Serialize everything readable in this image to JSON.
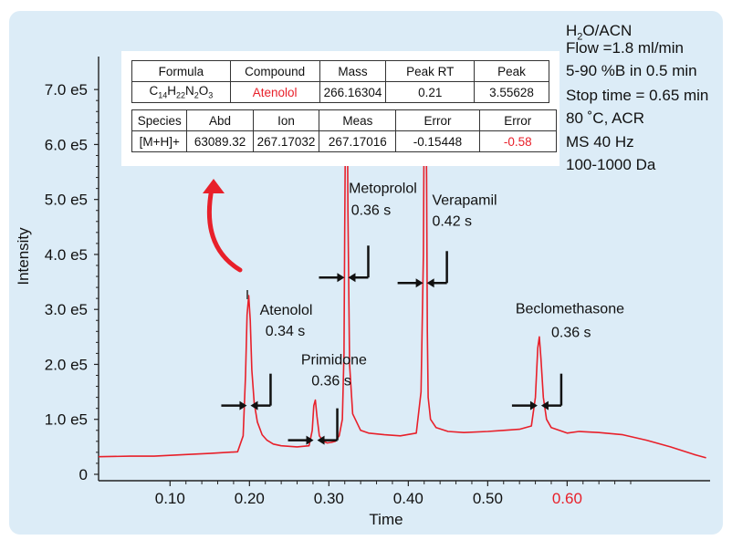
{
  "chart_data": {
    "type": "line",
    "xlabel": "Time",
    "ylabel": "Intensity",
    "xlim": [
      0.01,
      0.78
    ],
    "ylim": [
      -5000,
      760000
    ],
    "x_ticks": [
      0.1,
      0.2,
      0.3,
      0.4,
      0.5,
      0.6
    ],
    "x_tick_labels": [
      "0.10",
      "0.20",
      "0.30",
      "0.40",
      "0.50",
      "0.60"
    ],
    "y_ticks": [
      0,
      100000,
      200000,
      300000,
      400000,
      500000,
      600000,
      700000
    ],
    "y_tick_labels": [
      "0",
      "1.0 e5",
      "2.0 e5",
      "3.0 e5",
      "4.0 e5",
      "5.0 e5",
      "6.0 e5",
      "7.0 e5"
    ],
    "highlight_tick_color": "#e8202a",
    "line_color": "#e8202a",
    "series": [
      {
        "x": [
          0.01,
          0.05,
          0.08,
          0.12,
          0.15,
          0.185,
          0.192,
          0.195,
          0.197,
          0.199,
          0.201,
          0.203,
          0.206,
          0.21,
          0.216,
          0.222,
          0.23,
          0.24,
          0.26,
          0.275,
          0.279,
          0.281,
          0.283,
          0.285,
          0.288,
          0.293,
          0.298,
          0.303,
          0.308,
          0.313,
          0.317,
          0.319,
          0.32,
          0.321,
          0.322,
          0.323,
          0.324,
          0.326,
          0.33,
          0.34,
          0.35,
          0.37,
          0.39,
          0.41,
          0.416,
          0.419,
          0.42,
          0.421,
          0.422,
          0.423,
          0.424,
          0.425,
          0.428,
          0.435,
          0.45,
          0.47,
          0.5,
          0.52,
          0.54,
          0.555,
          0.56,
          0.563,
          0.565,
          0.567,
          0.57,
          0.574,
          0.58,
          0.59,
          0.6,
          0.615,
          0.64,
          0.67,
          0.7,
          0.73,
          0.76,
          0.775
        ],
        "y": [
          32000,
          33000,
          33000,
          36000,
          38000,
          41000,
          70000,
          180000,
          290000,
          325000,
          280000,
          190000,
          130000,
          95000,
          72000,
          62000,
          55000,
          52000,
          50000,
          52000,
          80000,
          125000,
          135000,
          105000,
          70000,
          60000,
          57000,
          58000,
          60000,
          70000,
          100000,
          220000,
          450000,
          660000,
          740000,
          720000,
          480000,
          200000,
          110000,
          80000,
          75000,
          72000,
          70000,
          75000,
          150000,
          400000,
          680000,
          745000,
          720000,
          540000,
          260000,
          140000,
          100000,
          85000,
          78000,
          76000,
          78000,
          80000,
          82000,
          88000,
          140000,
          230000,
          250000,
          210000,
          140000,
          100000,
          85000,
          80000,
          75000,
          78000,
          76000,
          72000,
          62000,
          50000,
          36000,
          30000
        ]
      }
    ],
    "width_markers": [
      {
        "x": 0.199,
        "y": 125000
      },
      {
        "x": 0.283,
        "y": 62000
      },
      {
        "x": 0.322,
        "y": 358000
      },
      {
        "x": 0.421,
        "y": 348000
      },
      {
        "x": 0.565,
        "y": 125000
      }
    ],
    "annotations": [
      {
        "text": "Atenolol",
        "x": 0.213,
        "y": 290000
      },
      {
        "text": "0.34 s",
        "x": 0.22,
        "y": 252000
      },
      {
        "text": "Primidone",
        "x": 0.265,
        "y": 200000
      },
      {
        "text": "0.36 s",
        "x": 0.278,
        "y": 162000
      },
      {
        "text": "Metoprolol",
        "x": 0.325,
        "y": 512000
      },
      {
        "text": "0.36 s",
        "x": 0.328,
        "y": 472000
      },
      {
        "text": "Verapamil",
        "x": 0.43,
        "y": 490000
      },
      {
        "text": "0.42 s",
        "x": 0.43,
        "y": 452000
      },
      {
        "text": "Beclomethasone",
        "x": 0.535,
        "y": 293000
      },
      {
        "text": "0.36 s",
        "x": 0.58,
        "y": 250000
      }
    ]
  },
  "conditions": {
    "solvent_prefix": "H",
    "solvent_sub": "2",
    "solvent_suffix": "O/ACN",
    "flow": "Flow =1.8 ml/min",
    "gradient": "5-90 %B in 0.5 min",
    "stop_time": "Stop time = 0.65 min",
    "temperature": "80 ˚C, ACR",
    "ms_rate": "MS 40 Hz",
    "mass_range": "100-1000 Da"
  },
  "info_table": {
    "top_headers": [
      "Formula",
      "Compound",
      "Mass",
      "Peak RT",
      "Peak"
    ],
    "formula_parts": {
      "c": "C",
      "c_sub": "14",
      "h": "H",
      "h_sub": "22",
      "n": "N",
      "n_sub": "2",
      "o": "O",
      "o_sub": "3"
    },
    "top_values": {
      "compound": "Atenolol",
      "mass": "266.16304",
      "peak_rt": "0.21",
      "peak": "3.55628"
    },
    "bottom_headers": [
      "Species",
      "Abd",
      "Ion",
      "Meas",
      "Error",
      "Error"
    ],
    "bottom_values": [
      "[M+H]+",
      "63089.32",
      "267.17032",
      "267.17016",
      "-0.15448",
      "-0.58"
    ],
    "highlight_color": "#e8202a"
  }
}
